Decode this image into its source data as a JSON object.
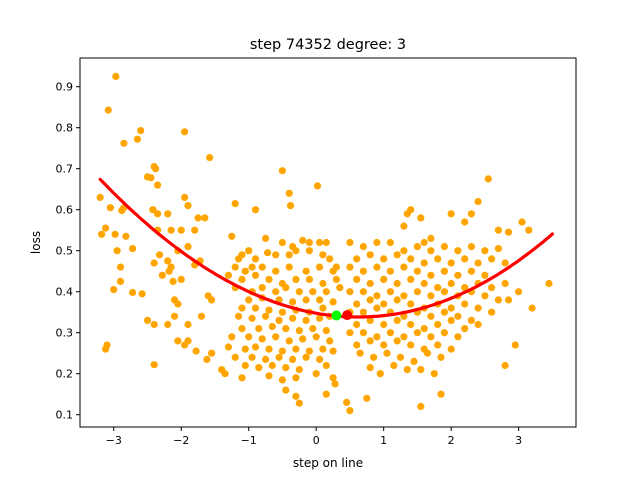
{
  "chart_data": {
    "type": "scatter",
    "title": "step 74352   degree: 3",
    "xlabel": "step on line",
    "ylabel": "loss",
    "xlim": [
      -3.5,
      3.85
    ],
    "ylim": [
      0.07,
      0.97
    ],
    "xticks": [
      -3,
      -2,
      -1,
      0,
      1,
      2,
      3
    ],
    "yticks": [
      0.1,
      0.2,
      0.3,
      0.4,
      0.5,
      0.6,
      0.7,
      0.8,
      0.9
    ],
    "xtick_labels": [
      "−3",
      "−2",
      "−1",
      "0",
      "1",
      "2",
      "3"
    ],
    "ytick_labels": [
      "0.1",
      "0.2",
      "0.3",
      "0.4",
      "0.5",
      "0.6",
      "0.7",
      "0.8",
      "0.9"
    ],
    "grid": false,
    "scatter_color": "#ffa500",
    "fit_color": "#ff0000",
    "points": [
      [
        -2.97,
        0.925
      ],
      [
        -3.08,
        0.843
      ],
      [
        -2.6,
        0.793
      ],
      [
        -2.65,
        0.772
      ],
      [
        -2.85,
        0.762
      ],
      [
        -1.95,
        0.79
      ],
      [
        -1.58,
        0.727
      ],
      [
        -2.4,
        0.705
      ],
      [
        -2.38,
        0.7
      ],
      [
        -2.5,
        0.68
      ],
      [
        -2.45,
        0.678
      ],
      [
        -2.35,
        0.66
      ],
      [
        -3.2,
        0.63
      ],
      [
        -1.95,
        0.63
      ],
      [
        -3.05,
        0.605
      ],
      [
        -2.85,
        0.605
      ],
      [
        -2.88,
        0.598
      ],
      [
        -2.42,
        0.6
      ],
      [
        -2.35,
        0.59
      ],
      [
        -2.2,
        0.59
      ],
      [
        -1.9,
        0.61
      ],
      [
        -1.75,
        0.58
      ],
      [
        -1.65,
        0.58
      ],
      [
        -3.12,
        0.555
      ],
      [
        -2.98,
        0.54
      ],
      [
        -2.82,
        0.535
      ],
      [
        -2.35,
        0.55
      ],
      [
        -2.15,
        0.55
      ],
      [
        -2,
        0.55
      ],
      [
        -1.8,
        0.55
      ],
      [
        -3.18,
        0.54
      ],
      [
        -2.72,
        0.505
      ],
      [
        -2.95,
        0.5
      ],
      [
        -2.32,
        0.49
      ],
      [
        -2.05,
        0.5
      ],
      [
        -1.9,
        0.51
      ],
      [
        -2.2,
        0.475
      ],
      [
        -2.15,
        0.46
      ],
      [
        -1.72,
        0.475
      ],
      [
        -1.8,
        0.465
      ],
      [
        -2.4,
        0.47
      ],
      [
        -2.18,
        0.45
      ],
      [
        -2.9,
        0.46
      ],
      [
        -2.9,
        0.425
      ],
      [
        -2.28,
        0.44
      ],
      [
        -2.12,
        0.425
      ],
      [
        -2,
        0.43
      ],
      [
        -3,
        0.405
      ],
      [
        -2.58,
        0.395
      ],
      [
        -2.72,
        0.398
      ],
      [
        -2.1,
        0.38
      ],
      [
        -2.05,
        0.37
      ],
      [
        -1.6,
        0.39
      ],
      [
        -1.55,
        0.38
      ],
      [
        -1.7,
        0.34
      ],
      [
        -2.1,
        0.34
      ],
      [
        -2.5,
        0.33
      ],
      [
        -2.4,
        0.32
      ],
      [
        -2.2,
        0.32
      ],
      [
        -1.9,
        0.32
      ],
      [
        -2.05,
        0.28
      ],
      [
        -1.9,
        0.28
      ],
      [
        -1.95,
        0.27
      ],
      [
        -1.78,
        0.255
      ],
      [
        -1.62,
        0.235
      ],
      [
        -1.55,
        0.25
      ],
      [
        -2.4,
        0.222
      ],
      [
        -3.1,
        0.27
      ],
      [
        -3.12,
        0.26
      ],
      [
        -1.2,
        0.615
      ],
      [
        -0.9,
        0.6
      ],
      [
        -0.5,
        0.695
      ],
      [
        -0.4,
        0.64
      ],
      [
        -0.38,
        0.61
      ],
      [
        0.02,
        0.658
      ],
      [
        -0.75,
        0.53
      ],
      [
        -0.72,
        0.495
      ],
      [
        -0.5,
        0.52
      ],
      [
        -0.35,
        0.51
      ],
      [
        -0.2,
        0.525
      ],
      [
        -0.1,
        0.52
      ],
      [
        0.05,
        0.52
      ],
      [
        0.15,
        0.52
      ],
      [
        -1.25,
        0.535
      ],
      [
        -1.15,
        0.48
      ],
      [
        -1.1,
        0.49
      ],
      [
        -1,
        0.5
      ],
      [
        -0.9,
        0.48
      ],
      [
        -0.6,
        0.49
      ],
      [
        -0.4,
        0.49
      ],
      [
        -0.3,
        0.5
      ],
      [
        -0.1,
        0.5
      ],
      [
        0.1,
        0.49
      ],
      [
        0.2,
        0.48
      ],
      [
        -1.2,
        0.46
      ],
      [
        -1.05,
        0.45
      ],
      [
        -0.95,
        0.46
      ],
      [
        -0.8,
        0.46
      ],
      [
        -0.6,
        0.45
      ],
      [
        -0.4,
        0.46
      ],
      [
        -0.15,
        0.45
      ],
      [
        0.05,
        0.46
      ],
      [
        0.25,
        0.45
      ],
      [
        0.3,
        0.46
      ],
      [
        -1.3,
        0.44
      ],
      [
        -1.1,
        0.43
      ],
      [
        -0.9,
        0.44
      ],
      [
        -0.7,
        0.43
      ],
      [
        -0.5,
        0.42
      ],
      [
        -0.3,
        0.43
      ],
      [
        -0.1,
        0.43
      ],
      [
        0.1,
        0.42
      ],
      [
        0.3,
        0.43
      ],
      [
        -1.2,
        0.41
      ],
      [
        -0.95,
        0.4
      ],
      [
        -0.8,
        0.41
      ],
      [
        -0.6,
        0.4
      ],
      [
        -0.45,
        0.41
      ],
      [
        -0.25,
        0.4
      ],
      [
        -0.05,
        0.4
      ],
      [
        0.15,
        0.4
      ],
      [
        0.35,
        0.41
      ],
      [
        -1,
        0.38
      ],
      [
        -0.8,
        0.385
      ],
      [
        -0.55,
        0.38
      ],
      [
        -0.35,
        0.375
      ],
      [
        -0.15,
        0.38
      ],
      [
        0.05,
        0.38
      ],
      [
        0.25,
        0.375
      ],
      [
        -1.1,
        0.36
      ],
      [
        -0.9,
        0.36
      ],
      [
        -0.7,
        0.355
      ],
      [
        -0.5,
        0.35
      ],
      [
        -0.3,
        0.355
      ],
      [
        -0.1,
        0.35
      ],
      [
        0.1,
        0.36
      ],
      [
        -1.15,
        0.34
      ],
      [
        -0.95,
        0.335
      ],
      [
        -0.75,
        0.34
      ],
      [
        -0.55,
        0.33
      ],
      [
        -0.35,
        0.335
      ],
      [
        -0.15,
        0.33
      ],
      [
        0.05,
        0.335
      ],
      [
        0.2,
        0.34
      ],
      [
        -1.1,
        0.31
      ],
      [
        -0.85,
        0.31
      ],
      [
        -0.65,
        0.315
      ],
      [
        -0.45,
        0.31
      ],
      [
        -0.25,
        0.305
      ],
      [
        -0.05,
        0.31
      ],
      [
        0.15,
        0.305
      ],
      [
        -1.25,
        0.29
      ],
      [
        -1,
        0.29
      ],
      [
        -0.8,
        0.285
      ],
      [
        -0.6,
        0.29
      ],
      [
        -0.4,
        0.28
      ],
      [
        -0.2,
        0.285
      ],
      [
        0,
        0.29
      ],
      [
        0.2,
        0.28
      ],
      [
        -1.3,
        0.265
      ],
      [
        -1.05,
        0.26
      ],
      [
        -0.9,
        0.265
      ],
      [
        -0.7,
        0.26
      ],
      [
        -0.5,
        0.255
      ],
      [
        -0.3,
        0.26
      ],
      [
        -0.1,
        0.255
      ],
      [
        0.1,
        0.26
      ],
      [
        0.25,
        0.255
      ],
      [
        -1.4,
        0.21
      ],
      [
        -1.2,
        0.24
      ],
      [
        -0.95,
        0.24
      ],
      [
        -0.75,
        0.235
      ],
      [
        -0.55,
        0.24
      ],
      [
        -0.35,
        0.235
      ],
      [
        -0.15,
        0.24
      ],
      [
        0.05,
        0.235
      ],
      [
        -1.35,
        0.2
      ],
      [
        -1.05,
        0.22
      ],
      [
        -0.85,
        0.215
      ],
      [
        -0.65,
        0.22
      ],
      [
        -0.45,
        0.215
      ],
      [
        -0.25,
        0.21
      ],
      [
        0.15,
        0.22
      ],
      [
        -1.1,
        0.19
      ],
      [
        -0.7,
        0.195
      ],
      [
        -0.5,
        0.185
      ],
      [
        -0.3,
        0.19
      ],
      [
        0,
        0.2
      ],
      [
        0.25,
        0.19
      ],
      [
        -0.45,
        0.16
      ],
      [
        -0.3,
        0.145
      ],
      [
        -0.25,
        0.128
      ],
      [
        0.15,
        0.15
      ],
      [
        0.28,
        0.175
      ],
      [
        0.45,
        0.13
      ],
      [
        0.5,
        0.11
      ],
      [
        0.8,
        0.215
      ],
      [
        1.3,
        0.56
      ],
      [
        1.35,
        0.59
      ],
      [
        1.4,
        0.6
      ],
      [
        1.55,
        0.58
      ],
      [
        1.7,
        0.53
      ],
      [
        1.6,
        0.52
      ],
      [
        2.0,
        0.59
      ],
      [
        2.3,
        0.59
      ],
      [
        2.4,
        0.62
      ],
      [
        2.55,
        0.675
      ],
      [
        2.2,
        0.57
      ],
      [
        2.7,
        0.55
      ],
      [
        3.05,
        0.57
      ],
      [
        3.15,
        0.55
      ],
      [
        2.85,
        0.545
      ],
      [
        0.5,
        0.52
      ],
      [
        0.7,
        0.51
      ],
      [
        0.9,
        0.52
      ],
      [
        1.1,
        0.52
      ],
      [
        1.3,
        0.5
      ],
      [
        1.5,
        0.51
      ],
      [
        1.7,
        0.5
      ],
      [
        1.9,
        0.51
      ],
      [
        2.1,
        0.5
      ],
      [
        2.3,
        0.51
      ],
      [
        2.5,
        0.5
      ],
      [
        2.7,
        0.505
      ],
      [
        0.6,
        0.48
      ],
      [
        0.8,
        0.49
      ],
      [
        1.0,
        0.48
      ],
      [
        1.2,
        0.49
      ],
      [
        1.4,
        0.48
      ],
      [
        1.6,
        0.47
      ],
      [
        1.8,
        0.48
      ],
      [
        2.0,
        0.47
      ],
      [
        2.2,
        0.48
      ],
      [
        2.4,
        0.47
      ],
      [
        2.6,
        0.48
      ],
      [
        2.8,
        0.47
      ],
      [
        0.5,
        0.46
      ],
      [
        0.7,
        0.45
      ],
      [
        0.9,
        0.46
      ],
      [
        1.1,
        0.45
      ],
      [
        1.3,
        0.46
      ],
      [
        1.5,
        0.45
      ],
      [
        1.7,
        0.44
      ],
      [
        1.9,
        0.45
      ],
      [
        2.1,
        0.44
      ],
      [
        2.3,
        0.45
      ],
      [
        2.5,
        0.44
      ],
      [
        0.6,
        0.43
      ],
      [
        0.8,
        0.42
      ],
      [
        1.0,
        0.43
      ],
      [
        1.2,
        0.42
      ],
      [
        1.4,
        0.43
      ],
      [
        1.6,
        0.42
      ],
      [
        1.8,
        0.41
      ],
      [
        2.0,
        0.42
      ],
      [
        2.2,
        0.41
      ],
      [
        2.4,
        0.42
      ],
      [
        2.6,
        0.41
      ],
      [
        2.8,
        0.42
      ],
      [
        0.5,
        0.4
      ],
      [
        0.7,
        0.4
      ],
      [
        0.9,
        0.39
      ],
      [
        1.1,
        0.4
      ],
      [
        1.3,
        0.39
      ],
      [
        1.5,
        0.4
      ],
      [
        1.7,
        0.39
      ],
      [
        1.9,
        0.4
      ],
      [
        2.1,
        0.39
      ],
      [
        2.3,
        0.4
      ],
      [
        2.5,
        0.39
      ],
      [
        0.6,
        0.37
      ],
      [
        0.8,
        0.38
      ],
      [
        1.0,
        0.37
      ],
      [
        1.2,
        0.38
      ],
      [
        1.4,
        0.37
      ],
      [
        1.6,
        0.36
      ],
      [
        1.8,
        0.37
      ],
      [
        2.0,
        0.36
      ],
      [
        2.2,
        0.37
      ],
      [
        2.4,
        0.36
      ],
      [
        2.7,
        0.38
      ],
      [
        3.0,
        0.4
      ],
      [
        0.5,
        0.35
      ],
      [
        0.7,
        0.35
      ],
      [
        0.9,
        0.36
      ],
      [
        1.1,
        0.35
      ],
      [
        1.3,
        0.34
      ],
      [
        1.5,
        0.35
      ],
      [
        1.7,
        0.34
      ],
      [
        1.9,
        0.35
      ],
      [
        2.1,
        0.34
      ],
      [
        2.3,
        0.33
      ],
      [
        2.6,
        0.35
      ],
      [
        2.85,
        0.38
      ],
      [
        3.2,
        0.36
      ],
      [
        0.6,
        0.32
      ],
      [
        0.8,
        0.33
      ],
      [
        1.0,
        0.32
      ],
      [
        1.2,
        0.33
      ],
      [
        1.4,
        0.32
      ],
      [
        1.6,
        0.31
      ],
      [
        1.8,
        0.32
      ],
      [
        2.0,
        0.33
      ],
      [
        2.2,
        0.31
      ],
      [
        2.4,
        0.32
      ],
      [
        0.5,
        0.3
      ],
      [
        0.7,
        0.3
      ],
      [
        0.9,
        0.29
      ],
      [
        1.1,
        0.3
      ],
      [
        1.3,
        0.29
      ],
      [
        1.5,
        0.3
      ],
      [
        1.7,
        0.29
      ],
      [
        1.9,
        0.3
      ],
      [
        2.1,
        0.29
      ],
      [
        0.6,
        0.27
      ],
      [
        0.8,
        0.28
      ],
      [
        1.0,
        0.27
      ],
      [
        1.2,
        0.28
      ],
      [
        1.4,
        0.27
      ],
      [
        1.6,
        0.26
      ],
      [
        1.8,
        0.27
      ],
      [
        2.0,
        0.26
      ],
      [
        0.65,
        0.25
      ],
      [
        0.85,
        0.24
      ],
      [
        1.05,
        0.25
      ],
      [
        1.25,
        0.24
      ],
      [
        1.45,
        0.23
      ],
      [
        1.65,
        0.25
      ],
      [
        1.85,
        0.24
      ],
      [
        2.95,
        0.27
      ],
      [
        1.15,
        0.22
      ],
      [
        1.35,
        0.21
      ],
      [
        1.55,
        0.21
      ],
      [
        1.75,
        0.2
      ],
      [
        2.8,
        0.22
      ],
      [
        0.95,
        0.2
      ],
      [
        0.75,
        0.14
      ],
      [
        1.55,
        0.12
      ],
      [
        1.85,
        0.15
      ],
      [
        3.45,
        0.42
      ]
    ],
    "fit_curve": {
      "type": "polynomial",
      "degree": 3,
      "x_range": [
        -3.2,
        3.5
      ],
      "coefficients_low_to_high": [
        0.3475,
        -0.0295,
        0.0234,
        0.00023
      ]
    },
    "markers": [
      {
        "x": 0.3,
        "y": 0.342,
        "color": "#00ff00"
      },
      {
        "x": 0.46,
        "y": 0.343,
        "color": "#ff0000"
      }
    ]
  }
}
